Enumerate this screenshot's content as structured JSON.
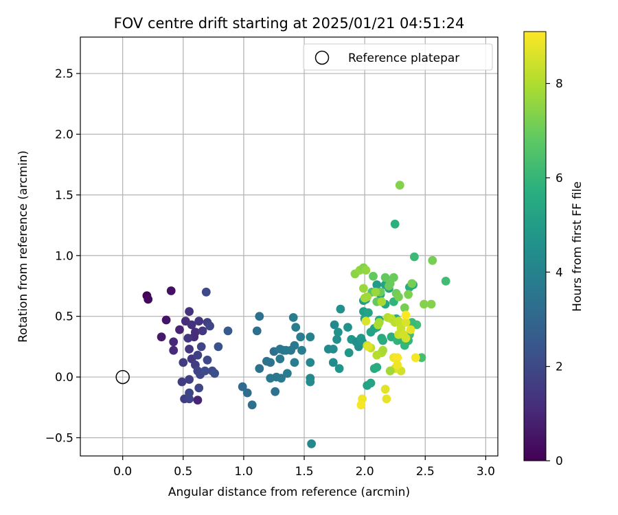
{
  "chart_data": {
    "type": "scatter",
    "title": "FOV centre drift starting at 2025/01/21 04:51:24",
    "xlabel": "Angular distance from reference (arcmin)",
    "ylabel": "Rotation from reference (arcmin)",
    "colorbar_label": "Hours from first FF file",
    "xlim": [
      -0.35,
      3.1
    ],
    "ylim": [
      -0.65,
      2.8
    ],
    "xticks": [
      "0.0",
      "0.5",
      "1.0",
      "1.5",
      "2.0",
      "2.5",
      "3.0"
    ],
    "yticks": [
      "−0.5",
      "0.0",
      "0.5",
      "1.0",
      "1.5",
      "2.0",
      "2.5"
    ],
    "colorbar_range": [
      0,
      9.1
    ],
    "colorbar_ticks": [
      "0",
      "2",
      "4",
      "6",
      "8"
    ],
    "colormap": "viridis",
    "grid": true,
    "legend_position": "upper-right",
    "reference": {
      "name": "Reference platepar",
      "x": 0.0,
      "y": 0.0
    },
    "points": [
      [
        0.2,
        0.67,
        0.1
      ],
      [
        0.21,
        0.64,
        0.2
      ],
      [
        0.4,
        0.71,
        0.4
      ],
      [
        0.36,
        0.47,
        0.5
      ],
      [
        0.32,
        0.33,
        0.6
      ],
      [
        0.47,
        0.39,
        0.9
      ],
      [
        0.42,
        0.29,
        1.0
      ],
      [
        0.42,
        0.22,
        1.1
      ],
      [
        0.52,
        0.46,
        1.2
      ],
      [
        0.55,
        0.54,
        1.3
      ],
      [
        0.57,
        0.43,
        1.3
      ],
      [
        0.6,
        0.37,
        1.2
      ],
      [
        0.59,
        0.33,
        1.1
      ],
      [
        0.63,
        0.46,
        1.4
      ],
      [
        0.66,
        0.38,
        1.5
      ],
      [
        0.54,
        0.32,
        1.4
      ],
      [
        0.55,
        0.23,
        1.4
      ],
      [
        0.5,
        0.12,
        1.6
      ],
      [
        0.57,
        0.15,
        1.5
      ],
      [
        0.6,
        0.1,
        1.6
      ],
      [
        0.62,
        0.18,
        1.7
      ],
      [
        0.65,
        0.25,
        1.8
      ],
      [
        0.62,
        0.05,
        1.8
      ],
      [
        0.64,
        0.02,
        1.9
      ],
      [
        0.62,
        -0.19,
        0.9
      ],
      [
        0.55,
        -0.02,
        1.7
      ],
      [
        0.49,
        -0.04,
        1.6
      ],
      [
        0.51,
        -0.18,
        1.7
      ],
      [
        0.55,
        -0.18,
        1.8
      ],
      [
        0.55,
        -0.13,
        1.9
      ],
      [
        0.63,
        -0.09,
        1.9
      ],
      [
        0.68,
        0.05,
        2.0
      ],
      [
        0.7,
        0.45,
        1.7
      ],
      [
        0.72,
        0.42,
        1.9
      ],
      [
        0.69,
        0.7,
        2.0
      ],
      [
        0.74,
        0.05,
        2.1
      ],
      [
        0.76,
        0.03,
        2.2
      ],
      [
        0.79,
        0.25,
        2.3
      ],
      [
        0.87,
        0.38,
        2.6
      ],
      [
        0.7,
        0.14,
        2.0
      ],
      [
        0.99,
        -0.08,
        3.1
      ],
      [
        1.03,
        -0.13,
        3.2
      ],
      [
        1.07,
        -0.23,
        3.3
      ],
      [
        1.11,
        0.38,
        3.3
      ],
      [
        1.13,
        0.5,
        3.4
      ],
      [
        1.13,
        0.07,
        3.4
      ],
      [
        1.19,
        0.13,
        3.5
      ],
      [
        1.22,
        0.12,
        3.5
      ],
      [
        1.22,
        -0.01,
        3.6
      ],
      [
        1.25,
        0.21,
        3.3
      ],
      [
        1.26,
        -0.12,
        3.4
      ],
      [
        1.27,
        0.0,
        3.6
      ],
      [
        1.3,
        0.15,
        3.7
      ],
      [
        1.3,
        0.23,
        3.6
      ],
      [
        1.31,
        -0.01,
        3.7
      ],
      [
        1.33,
        0.22,
        3.6
      ],
      [
        1.35,
        0.22,
        3.7
      ],
      [
        1.36,
        0.03,
        3.8
      ],
      [
        1.39,
        0.22,
        3.7
      ],
      [
        1.41,
        0.49,
        3.8
      ],
      [
        1.42,
        0.26,
        3.7
      ],
      [
        1.43,
        0.41,
        3.8
      ],
      [
        1.42,
        0.12,
        3.9
      ],
      [
        1.47,
        0.33,
        3.9
      ],
      [
        1.48,
        0.22,
        3.9
      ],
      [
        1.55,
        0.33,
        4.0
      ],
      [
        1.55,
        0.12,
        4.2
      ],
      [
        1.56,
        -0.55,
        4.3
      ],
      [
        1.55,
        -0.01,
        4.3
      ],
      [
        1.55,
        -0.04,
        4.4
      ],
      [
        1.7,
        0.23,
        4.3
      ],
      [
        1.74,
        0.23,
        4.4
      ],
      [
        1.74,
        0.12,
        4.4
      ],
      [
        1.75,
        0.43,
        4.3
      ],
      [
        1.77,
        0.31,
        4.5
      ],
      [
        1.78,
        0.37,
        4.6
      ],
      [
        1.79,
        0.07,
        4.7
      ],
      [
        1.8,
        0.56,
        4.6
      ],
      [
        1.86,
        0.41,
        4.6
      ],
      [
        1.87,
        0.2,
        4.8
      ],
      [
        1.89,
        0.31,
        4.8
      ],
      [
        1.93,
        0.29,
        4.5
      ],
      [
        1.95,
        0.25,
        4.5
      ],
      [
        1.97,
        0.32,
        4.9
      ],
      [
        1.98,
        0.29,
        4.7
      ],
      [
        1.99,
        0.63,
        5.0
      ],
      [
        1.99,
        0.54,
        5.1
      ],
      [
        2.0,
        0.48,
        5.2
      ],
      [
        2.01,
        0.64,
        5.1
      ],
      [
        2.03,
        0.53,
        5.3
      ],
      [
        2.02,
        -0.07,
        5.2
      ],
      [
        2.05,
        -0.05,
        5.3
      ],
      [
        2.08,
        0.07,
        5.5
      ],
      [
        2.1,
        0.08,
        5.6
      ],
      [
        2.05,
        0.37,
        5.2
      ],
      [
        2.08,
        0.4,
        5.3
      ],
      [
        2.1,
        0.41,
        5.4
      ],
      [
        2.12,
        0.47,
        5.4
      ],
      [
        2.14,
        0.32,
        5.5
      ],
      [
        2.15,
        0.3,
        5.6
      ],
      [
        2.1,
        0.76,
        5.0
      ],
      [
        2.13,
        0.68,
        5.2
      ],
      [
        2.17,
        0.76,
        5.3
      ],
      [
        2.17,
        0.6,
        5.4
      ],
      [
        2.2,
        0.73,
        5.3
      ],
      [
        2.22,
        0.33,
        5.7
      ],
      [
        2.24,
        0.47,
        5.8
      ],
      [
        2.24,
        0.62,
        5.9
      ],
      [
        2.26,
        0.48,
        5.6
      ],
      [
        2.25,
        1.26,
        5.7
      ],
      [
        2.27,
        0.3,
        5.9
      ],
      [
        2.3,
        0.31,
        5.8
      ],
      [
        2.33,
        0.26,
        6.0
      ],
      [
        2.34,
        0.29,
        6.1
      ],
      [
        2.36,
        0.3,
        6.0
      ],
      [
        2.37,
        0.74,
        5.6
      ],
      [
        2.4,
        0.76,
        5.5
      ],
      [
        2.41,
        0.99,
        6.2
      ],
      [
        2.43,
        0.43,
        6.3
      ],
      [
        2.47,
        0.16,
        6.4
      ],
      [
        2.67,
        0.79,
        6.3
      ],
      [
        2.39,
        0.45,
        6.2
      ],
      [
        2.37,
        0.35,
        6.3
      ],
      [
        2.06,
        0.7,
        6.6
      ],
      [
        2.07,
        0.83,
        6.9
      ],
      [
        2.1,
        0.62,
        6.9
      ],
      [
        2.13,
        0.7,
        7.0
      ],
      [
        2.17,
        0.82,
        6.9
      ],
      [
        2.2,
        0.75,
        7.0
      ],
      [
        2.21,
        0.77,
        7.0
      ],
      [
        2.24,
        0.82,
        7.0
      ],
      [
        2.26,
        0.69,
        7.1
      ],
      [
        2.28,
        0.66,
        7.2
      ],
      [
        2.29,
        1.58,
        7.4
      ],
      [
        2.33,
        0.57,
        7.2
      ],
      [
        2.36,
        0.68,
        7.3
      ],
      [
        2.39,
        0.77,
        7.2
      ],
      [
        2.49,
        0.6,
        7.4
      ],
      [
        2.55,
        0.6,
        7.4
      ],
      [
        2.56,
        0.96,
        7.2
      ],
      [
        1.92,
        0.85,
        7.5
      ],
      [
        1.96,
        0.88,
        7.6
      ],
      [
        1.99,
        0.9,
        7.4
      ],
      [
        2.01,
        0.88,
        7.6
      ],
      [
        1.99,
        0.73,
        7.7
      ],
      [
        2.0,
        0.65,
        7.8
      ],
      [
        2.02,
        0.66,
        7.8
      ],
      [
        2.09,
        0.7,
        7.7
      ],
      [
        2.14,
        0.62,
        7.9
      ],
      [
        2.11,
        0.43,
        8.0
      ],
      [
        2.12,
        0.45,
        7.9
      ],
      [
        2.14,
        0.2,
        8.0
      ],
      [
        2.15,
        0.22,
        7.9
      ],
      [
        2.1,
        0.18,
        8.1
      ],
      [
        2.05,
        0.24,
        8.2
      ],
      [
        2.02,
        0.26,
        8.3
      ],
      [
        2.19,
        0.49,
        8.1
      ],
      [
        2.22,
        0.48,
        8.2
      ],
      [
        2.25,
        0.45,
        8.2
      ],
      [
        2.28,
        0.46,
        8.3
      ],
      [
        2.3,
        0.4,
        8.4
      ],
      [
        2.28,
        0.35,
        8.4
      ],
      [
        2.32,
        0.35,
        8.5
      ],
      [
        2.34,
        0.45,
        8.6
      ],
      [
        2.34,
        0.32,
        8.5
      ],
      [
        2.3,
        0.05,
        8.5
      ],
      [
        2.25,
        0.07,
        8.6
      ],
      [
        2.21,
        0.05,
        7.8
      ],
      [
        2.01,
        0.46,
        8.6
      ],
      [
        2.03,
        0.25,
        8.7
      ],
      [
        2.17,
        -0.1,
        8.7
      ],
      [
        2.18,
        -0.18,
        8.8
      ],
      [
        1.98,
        -0.18,
        8.9
      ],
      [
        1.97,
        -0.23,
        9.0
      ],
      [
        2.24,
        0.16,
        8.9
      ],
      [
        2.27,
        0.16,
        9.0
      ],
      [
        2.27,
        0.1,
        8.9
      ],
      [
        2.34,
        0.51,
        9.1
      ],
      [
        2.42,
        0.16,
        9.0
      ],
      [
        2.38,
        0.39,
        8.8
      ]
    ]
  }
}
